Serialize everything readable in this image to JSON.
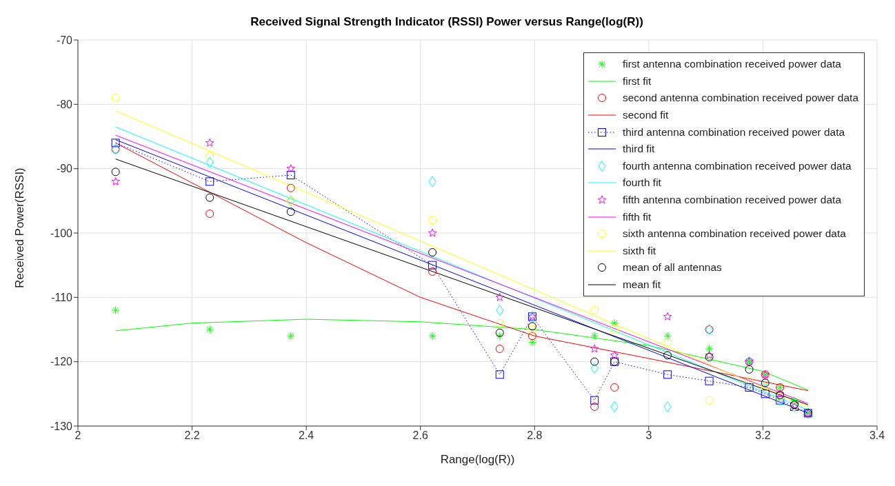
{
  "chart_data": {
    "type": "scatter",
    "title": "Received Signal Strength Indicator (RSSI) Power versus Range(log(R))",
    "xlabel": "Range(log(R))",
    "ylabel": "Received Power(RSSI)",
    "x": [
      2.066,
      2.231,
      2.373,
      2.621,
      2.739,
      2.796,
      2.905,
      2.94,
      3.033,
      3.106,
      3.176,
      3.204,
      3.23,
      3.255,
      3.279
    ],
    "xlim": [
      2,
      3.4
    ],
    "xticks": [
      2,
      2.2,
      2.4,
      2.6,
      2.8,
      3,
      3.2,
      3.4
    ],
    "ylim": [
      -130,
      -70
    ],
    "yticks": [
      -130,
      -120,
      -110,
      -100,
      -90,
      -80,
      -70
    ],
    "grid": true,
    "legend": "top right",
    "series": [
      {
        "name": "first antenna combination received power data",
        "color": "#00ff00",
        "marker": "cross",
        "values": [
          -112,
          -115,
          -116,
          -116,
          -116,
          -117,
          -116,
          -114,
          -116,
          -118,
          -120,
          -122,
          -124,
          -126,
          -128
        ]
      },
      {
        "name": "first fit",
        "color": "#00ff00",
        "type": "line",
        "x": [
          2.066,
          2.2,
          2.4,
          2.6,
          2.8,
          3.0,
          3.2,
          3.279
        ],
        "values": [
          -115.2,
          -114,
          -113.4,
          -113.8,
          -115,
          -117.5,
          -121.5,
          -124.4
        ]
      },
      {
        "name": "second antenna combination received power data",
        "color": "#ff0000",
        "marker": "circle",
        "values": [
          -87,
          -97,
          -93,
          -106,
          -118,
          -116,
          -127,
          -124,
          null,
          -115,
          -120,
          -122,
          -124,
          null,
          null
        ]
      },
      {
        "name": "second fit",
        "color": "#ff0000",
        "type": "line",
        "x": [
          2.066,
          2.4,
          2.6,
          2.8,
          3.0,
          3.279
        ],
        "values": [
          -86,
          -101.5,
          -110,
          -116,
          -119.5,
          -124.5
        ]
      },
      {
        "name": "third antenna combination received power data",
        "color": "#0000ff",
        "type": "line",
        "line_style": "dotted",
        "marker": "square",
        "values": [
          -86,
          -92,
          -91,
          -105,
          -122,
          -113,
          -126,
          -120,
          -122,
          -123,
          -124,
          -125,
          -126,
          -127,
          -128
        ]
      },
      {
        "name": "third fit",
        "color": "#0000ff",
        "type": "line",
        "x": [
          2.066,
          3.279
        ],
        "values": [
          -85.5,
          -128
        ]
      },
      {
        "name": "fourth antenna combination received power data",
        "color": "#00ffff",
        "marker": "diamond",
        "values": [
          -87,
          -89,
          -95,
          -92,
          -112,
          -113,
          -121,
          -127,
          -127,
          -115,
          -120,
          -123,
          -126,
          -127,
          -128
        ]
      },
      {
        "name": "fourth fit",
        "color": "#00ffff",
        "type": "line",
        "x": [
          2.066,
          3.279
        ],
        "values": [
          -83.5,
          -127.5
        ]
      },
      {
        "name": "fifth antenna combination received power data",
        "color": "#ff00ff",
        "marker": "star",
        "values": [
          -92,
          -86,
          -90,
          -100,
          -110,
          -113,
          -118,
          -119,
          -113,
          -119,
          -120,
          -122,
          -125,
          -127,
          -128
        ]
      },
      {
        "name": "fifth fit",
        "color": "#ff00ff",
        "type": "line",
        "x": [
          2.066,
          3.279
        ],
        "values": [
          -84.8,
          -126.5
        ]
      },
      {
        "name": "sixth antenna combination received power data",
        "color": "#ffff00",
        "marker": "circle",
        "values": [
          -79,
          -88,
          -95,
          -98,
          -114,
          -115,
          -112,
          -115,
          -117,
          -126,
          -123,
          -124,
          -125.5,
          -127,
          null
        ]
      },
      {
        "name": "sixth fit",
        "color": "#ffff00",
        "type": "line",
        "x": [
          2.066,
          3.279
        ],
        "values": [
          -81,
          -127
        ]
      },
      {
        "name": "mean of all antennas",
        "color": "#000000",
        "marker": "circle",
        "values": [
          -90.5,
          -94.5,
          -96.7,
          -103,
          -115.5,
          -114.5,
          -120,
          -120,
          -119,
          -119.3,
          -121.2,
          -123.3,
          -125.2,
          -126.7,
          -128
        ]
      },
      {
        "name": "mean fit",
        "color": "#000000",
        "type": "line",
        "x": [
          2.066,
          3.279
        ],
        "values": [
          -88.5,
          -126.7
        ]
      }
    ]
  }
}
